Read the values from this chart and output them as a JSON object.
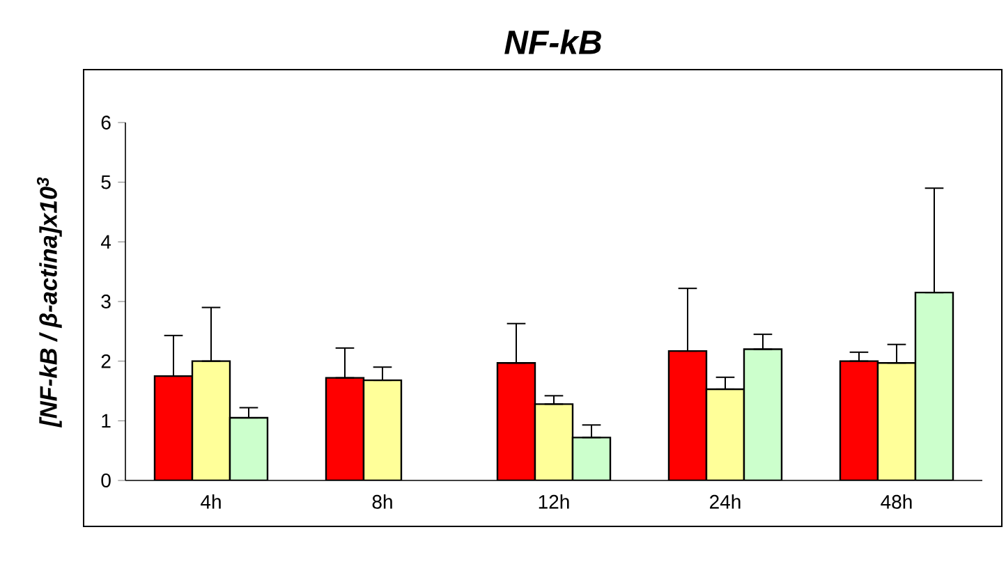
{
  "chart_data": {
    "type": "bar",
    "title": "NF-kB",
    "ylabel": "[NF-kB / β-actina]x10$^{3}$",
    "categories": [
      "4h",
      "8h",
      "12h",
      "24h",
      "48h"
    ],
    "ylim": [
      0,
      6
    ],
    "yticks": [
      0,
      1,
      2,
      3,
      4,
      5,
      6
    ],
    "grid": false,
    "series": [
      {
        "color": "#ff0000",
        "values": [
          1.75,
          1.72,
          1.97,
          2.17,
          2.0
        ],
        "errors": [
          [
            1.75,
            2.43
          ],
          [
            1.72,
            2.22
          ],
          [
            1.97,
            2.63
          ],
          [
            2.17,
            3.22
          ],
          [
            2.0,
            2.15
          ]
        ]
      },
      {
        "color": "#ffff99",
        "values": [
          2.0,
          1.68,
          1.28,
          1.53,
          1.97
        ],
        "errors": [
          [
            2.0,
            2.9
          ],
          [
            1.68,
            1.9
          ],
          [
            1.28,
            1.42
          ],
          [
            1.53,
            1.73
          ],
          [
            1.97,
            2.28
          ]
        ]
      },
      {
        "color": "#ccffcc",
        "values": [
          1.05,
          null,
          0.72,
          2.2,
          3.15
        ],
        "errors": [
          [
            1.05,
            1.22
          ],
          null,
          [
            0.72,
            0.93
          ],
          [
            2.2,
            2.45
          ],
          [
            3.15,
            4.9
          ]
        ]
      }
    ]
  }
}
